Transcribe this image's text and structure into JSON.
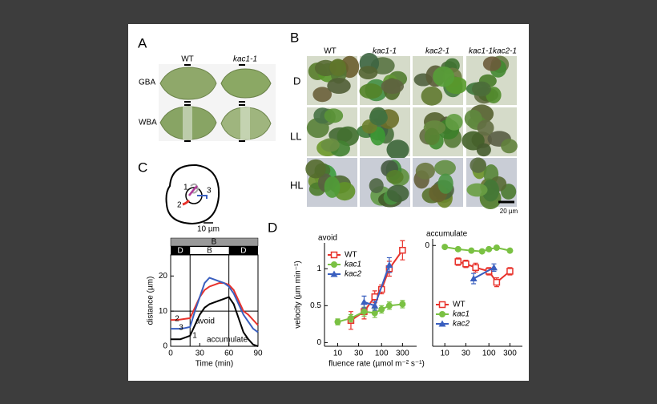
{
  "panel_labels": [
    "A",
    "B",
    "C",
    "D"
  ],
  "panel_a": {
    "columns": [
      "WT",
      "kac1-1"
    ],
    "rows": [
      "GBA",
      "WBA"
    ]
  },
  "panel_b": {
    "columns": [
      "WT",
      "kac1-1",
      "kac2-1",
      "kac1-1kac2-1"
    ],
    "rows": [
      "D",
      "LL",
      "HL"
    ],
    "scale_bar": "20 µm"
  },
  "panel_c": {
    "cell_labels": [
      "1",
      "2",
      "3"
    ],
    "scale_bar": "10 µm",
    "light_bar": "B",
    "periods": [
      "D",
      "B",
      "D"
    ]
  },
  "chart_data": [
    {
      "type": "line",
      "xlabel": "Time (min)",
      "ylabel": "distance (µm)",
      "x": [
        0,
        5,
        10,
        15,
        20,
        25,
        30,
        35,
        40,
        45,
        50,
        55,
        60,
        65,
        70,
        75,
        80,
        85,
        90
      ],
      "series": [
        {
          "name": "2",
          "color": "#e8322b",
          "values": [
            7.5,
            7.5,
            7.6,
            7.8,
            8,
            11,
            14,
            16,
            17,
            17.5,
            18,
            18,
            17.5,
            16,
            13,
            10,
            9,
            7.5,
            6
          ]
        },
        {
          "name": "3",
          "color": "#3a5fbf",
          "values": [
            5,
            5,
            5,
            5.2,
            5.5,
            10,
            14,
            18,
            19.5,
            19,
            18.5,
            18,
            17,
            15,
            12,
            9,
            7,
            5,
            4
          ]
        },
        {
          "name": "1",
          "color": "#000000",
          "values": [
            2,
            2,
            2,
            2.5,
            3,
            6,
            9,
            11,
            12,
            12.5,
            13,
            13.5,
            14,
            12,
            8,
            4,
            2,
            0.5,
            0
          ]
        }
      ],
      "annotations": [
        "avoid",
        "accumulate"
      ],
      "light_on": 20,
      "light_off": 60,
      "reference_line": 10,
      "xlim": [
        0,
        90
      ],
      "xticks": [
        0,
        30,
        60,
        90
      ],
      "ylim": [
        0,
        26
      ],
      "yticks": [
        0,
        10,
        20
      ]
    },
    {
      "type": "line",
      "title": "avoid",
      "ylabel": "velocity (µm min⁻¹)",
      "xlabel": "fluence rate (µmol m⁻² s⁻¹)",
      "xscale": "log",
      "xlim": [
        5,
        630
      ],
      "xticks": [
        10,
        30,
        100,
        300
      ],
      "ylim": [
        -0.05,
        1.35
      ],
      "yticks": [
        0,
        0.5,
        1
      ],
      "legend": "upper left",
      "series": [
        {
          "name": "WT",
          "color": "#e8322b",
          "marker": "square-open",
          "x": [
            20,
            40,
            70,
            100,
            150,
            300
          ],
          "values": [
            0.3,
            0.42,
            0.62,
            0.72,
            1.0,
            1.25
          ],
          "errors": [
            0.12,
            0.1,
            0.08,
            0.06,
            0.1,
            0.13
          ]
        },
        {
          "name": "kac1",
          "color": "#7ac143",
          "marker": "circle",
          "x": [
            10,
            20,
            40,
            70,
            100,
            150,
            300
          ],
          "values": [
            0.28,
            0.33,
            0.42,
            0.4,
            0.45,
            0.5,
            0.52
          ],
          "errors": [
            0.04,
            0.05,
            0.06,
            0.06,
            0.05,
            0.05,
            0.05
          ]
        },
        {
          "name": "kac2",
          "color": "#3a5fbf",
          "marker": "triangle",
          "x": [
            40,
            70,
            150
          ],
          "values": [
            0.55,
            0.5,
            1.05
          ],
          "errors": [
            0.08,
            0.06,
            0.1
          ]
        }
      ]
    },
    {
      "type": "line",
      "title": "accumulate",
      "xscale": "log",
      "xlim": [
        5.3,
        575
      ],
      "xticks": [
        10,
        30,
        100,
        300
      ],
      "ylim": [
        -1.37,
        0.09
      ],
      "yticks": [
        0
      ],
      "legend": "lower left",
      "series": [
        {
          "name": "WT",
          "color": "#e8322b",
          "marker": "square-open",
          "x": [
            20,
            30,
            50,
            100,
            150,
            300
          ],
          "values": [
            -0.22,
            -0.25,
            -0.3,
            -0.35,
            -0.5,
            -0.35
          ],
          "errors": [
            0.05,
            0.05,
            0.06,
            0.05,
            0.06,
            0.05
          ]
        },
        {
          "name": "kac1",
          "color": "#7ac143",
          "marker": "circle",
          "x": [
            10,
            20,
            40,
            70,
            100,
            150,
            300
          ],
          "values": [
            -0.02,
            -0.05,
            -0.07,
            -0.08,
            -0.05,
            -0.03,
            -0.07
          ],
          "errors": [
            0.02,
            0.02,
            0.02,
            0.02,
            0.02,
            0.02,
            0.02
          ]
        },
        {
          "name": "kac2",
          "color": "#3a5fbf",
          "marker": "triangle",
          "x": [
            45,
            130
          ],
          "values": [
            -0.45,
            -0.3
          ],
          "errors": [
            0.07,
            0.05
          ]
        }
      ]
    }
  ]
}
